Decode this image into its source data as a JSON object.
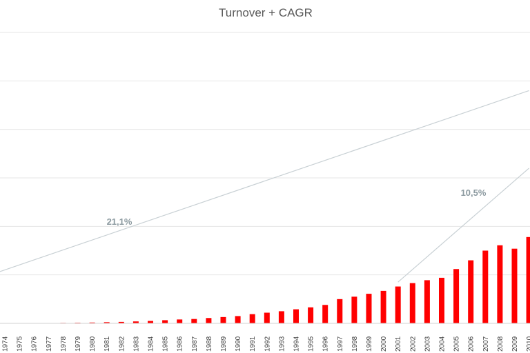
{
  "chart_data": {
    "type": "bar",
    "title": "Turnover + CAGR",
    "xlabel": "",
    "ylabel": "",
    "grid": true,
    "legend": "none",
    "ylim": [
      0,
      600
    ],
    "categories": [
      "1974",
      "1975",
      "1976",
      "1977",
      "1978",
      "1979",
      "1980",
      "1981",
      "1982",
      "1983",
      "1984",
      "1985",
      "1986",
      "1987",
      "1988",
      "1989",
      "1990",
      "1991",
      "1992",
      "1993",
      "1994",
      "1995",
      "1996",
      "1997",
      "1998",
      "1999",
      "2000",
      "2001",
      "2002",
      "2003",
      "2004",
      "2005",
      "2006",
      "2007",
      "2008",
      "2009",
      "2010"
    ],
    "series": [
      {
        "color": "#ff0000",
        "values": [
          0.5,
          0.5,
          0.6,
          0.7,
          1,
          1.3,
          1.7,
          2.4,
          3,
          4,
          5,
          6.5,
          8,
          9,
          11,
          13,
          15,
          19,
          22,
          25,
          29,
          33,
          38,
          50,
          55,
          61,
          67,
          76,
          83,
          89,
          94,
          112,
          130,
          150,
          161,
          154,
          178
        ]
      }
    ],
    "annotations": [
      {
        "text": "21,1%",
        "trend_from": [
          "1973",
          100
        ],
        "trend_to": [
          "2010",
          480
        ]
      },
      {
        "text": "10,5%",
        "trend_from": [
          "2001",
          85
        ],
        "trend_to": [
          "2010",
          320
        ]
      }
    ],
    "colors": {
      "bar": "#ff0000",
      "grid": "#e6e6e6",
      "trend": "#c8d0d4",
      "title": "#595959"
    }
  }
}
